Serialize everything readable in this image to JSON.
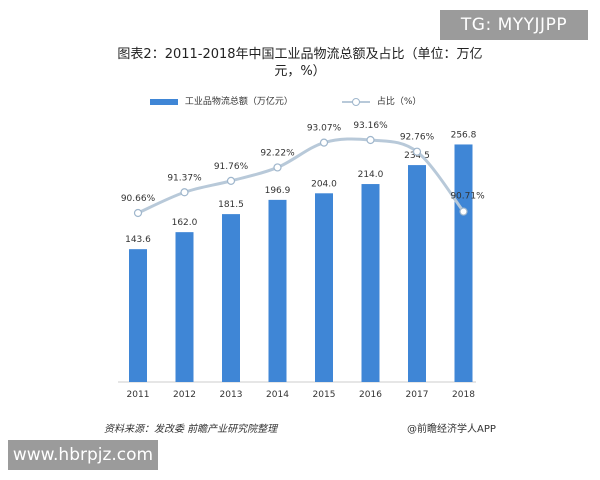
{
  "watermark_top": "TG: MYYJJPP",
  "watermark_bottom": "www.hbrpjz.com",
  "source_note": "资料来源：发改委 前瞻产业研究院整理",
  "brand_note": "@前瞻经济学人APP",
  "colors": {
    "bar": "#3f86d6",
    "line": "#b8c9d9",
    "marker": "#9fb6cc"
  },
  "chart_data": {
    "type": "bar",
    "title": "图表2：2011-2018年中国工业品物流总额及占比（单位：万亿元，%）",
    "categories": [
      "2011",
      "2012",
      "2013",
      "2014",
      "2015",
      "2016",
      "2017",
      "2018"
    ],
    "series": [
      {
        "name": "工业品物流总额（万亿元）",
        "type": "bar",
        "values": [
          143.6,
          162.0,
          181.5,
          196.9,
          204.0,
          214.0,
          234.5,
          256.8
        ],
        "labels": [
          "143.6",
          "162.0",
          "181.5",
          "196.9",
          "204.0",
          "214.0",
          "234.5",
          "256.8"
        ]
      },
      {
        "name": "占比（%）",
        "type": "line",
        "values": [
          90.66,
          91.37,
          91.76,
          92.22,
          93.07,
          93.16,
          92.76,
          90.71
        ],
        "labels": [
          "90.66%",
          "91.37%",
          "91.76%",
          "92.22%",
          "93.07%",
          "93.16%",
          "92.76%",
          "90.71%"
        ]
      }
    ],
    "legend_position": "top",
    "grid": false
  }
}
